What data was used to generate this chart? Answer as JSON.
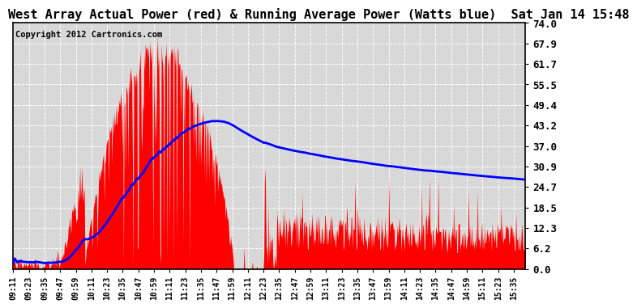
{
  "title": "West Array Actual Power (red) & Running Average Power (Watts blue)  Sat Jan 14 15:48",
  "copyright": "Copyright 2012 Cartronics.com",
  "y_ticks": [
    0.0,
    6.2,
    12.3,
    18.5,
    24.7,
    30.9,
    37.0,
    43.2,
    49.4,
    55.5,
    61.7,
    67.9,
    74.0
  ],
  "ylim": [
    0.0,
    74.0
  ],
  "bg_color": "#ffffff",
  "plot_bg_color": "#d8d8d8",
  "bar_color": "#ff0000",
  "line_color": "#0000ff",
  "grid_color": "#ffffff",
  "title_fontsize": 11,
  "copyright_fontsize": 7.5,
  "ytick_fontsize": 9,
  "xtick_fontsize": 7,
  "line_width": 2.0,
  "start_hour": 9,
  "start_min": 11,
  "total_minutes": 393,
  "x_tick_every_n_min": 12
}
